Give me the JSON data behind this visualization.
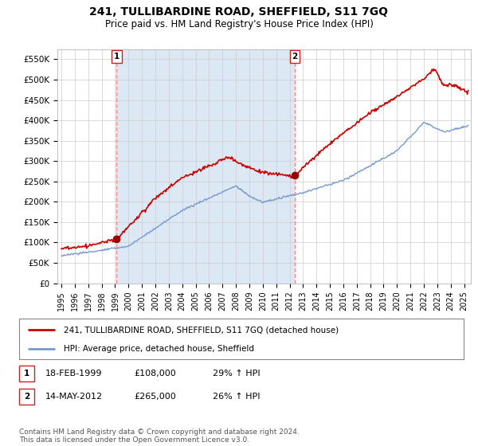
{
  "title": "241, TULLIBARDINE ROAD, SHEFFIELD, S11 7GQ",
  "subtitle": "Price paid vs. HM Land Registry's House Price Index (HPI)",
  "ylabel_ticks": [
    "£0",
    "£50K",
    "£100K",
    "£150K",
    "£200K",
    "£250K",
    "£300K",
    "£350K",
    "£400K",
    "£450K",
    "£500K",
    "£550K"
  ],
  "ytick_values": [
    0,
    50000,
    100000,
    150000,
    200000,
    250000,
    300000,
    350000,
    400000,
    450000,
    500000,
    550000
  ],
  "ylim": [
    0,
    575000
  ],
  "xlim_start": 1994.7,
  "xlim_end": 2025.5,
  "sale1": {
    "date_num": 1999.12,
    "price": 108000,
    "label": "1"
  },
  "sale2": {
    "date_num": 2012.37,
    "price": 265000,
    "label": "2"
  },
  "legend_line1": "241, TULLIBARDINE ROAD, SHEFFIELD, S11 7GQ (detached house)",
  "legend_line2": "HPI: Average price, detached house, Sheffield",
  "table_rows": [
    {
      "num": "1",
      "date": "18-FEB-1999",
      "price": "£108,000",
      "change": "29% ↑ HPI"
    },
    {
      "num": "2",
      "date": "14-MAY-2012",
      "price": "£265,000",
      "change": "26% ↑ HPI"
    }
  ],
  "footer": "Contains HM Land Registry data © Crown copyright and database right 2024.\nThis data is licensed under the Open Government Licence v3.0.",
  "line_color_red": "#cc0000",
  "line_color_blue": "#7799cc",
  "shade_color": "#dde8f5",
  "vline_color": "#ff8888",
  "dot_color_red": "#990000",
  "background_color": "#ffffff",
  "grid_color": "#cccccc",
  "title_fontsize": 10,
  "subtitle_fontsize": 8.5,
  "tick_fontsize": 7.5,
  "legend_fontsize": 8,
  "table_fontsize": 8,
  "footer_fontsize": 6.5
}
